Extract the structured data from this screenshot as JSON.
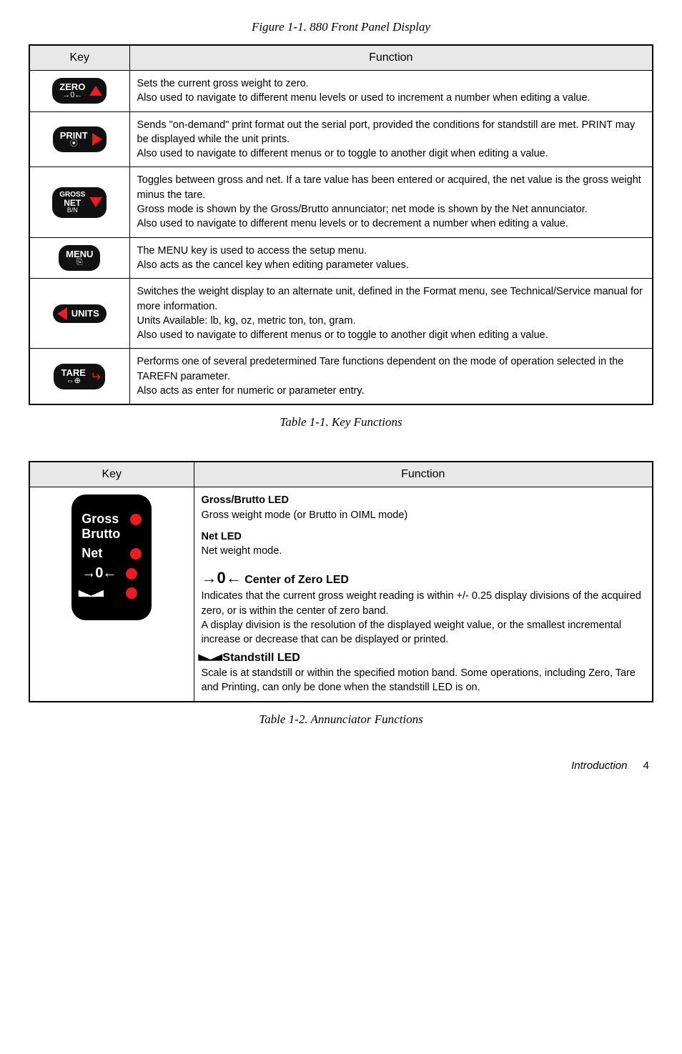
{
  "figure_caption": "Figure 1-1. 880 Front Panel Display",
  "table1_caption": "Table 1-1. Key Functions",
  "table2_caption": "Table 1-2. Annunciator Functions",
  "table1": {
    "header_key": "Key",
    "header_func": "Function",
    "rows": [
      {
        "key_label": "ZERO",
        "key_sub": "→0←",
        "arrow": "up",
        "func": "Sets the current gross weight to zero.\nAlso used to navigate to different menu levels or used to increment a number when editing a value."
      },
      {
        "key_label": "PRINT",
        "key_sub": "⦿",
        "arrow": "right",
        "func": "Sends \"on-demand\" print format out the serial port, provided the conditions for standstill are met. PRINT may be displayed while the unit prints.\nAlso used to navigate to different menus or to toggle to another digit when editing a value."
      },
      {
        "key_label": "GROSS",
        "key_sub2": "NET",
        "key_sub3": "B/N",
        "arrow": "down",
        "func": "Toggles between gross and net. If a tare value has been entered or acquired, the net value is the gross weight minus the tare.\nGross mode is shown by the Gross/Brutto annunciator; net mode is shown by the Net annunciator.\nAlso used to navigate to different menu levels or to decrement a number when editing a value."
      },
      {
        "key_label": "MENU",
        "key_sub": "⎘",
        "arrow": "none",
        "func": "The MENU key is used to access the setup menu.\nAlso acts as the cancel key when editing parameter values."
      },
      {
        "key_label": "UNITS",
        "arrow": "left",
        "func": "Switches the weight display to an alternate unit, defined in the Format menu, see Technical/Service manual for more information.\nUnits Available: lb, kg, oz, metric ton, ton, gram.\nAlso used to navigate to different menus or to toggle to another digit when editing a value."
      },
      {
        "key_label": "TARE",
        "key_sub": "⇔⊕",
        "arrow": "enter",
        "func": "Performs one of several predetermined Tare functions dependent on the mode of operation selected in the TAREFN parameter.\nAlso acts as enter for numeric or parameter entry."
      }
    ]
  },
  "table2": {
    "header_key": "Key",
    "header_func": "Function",
    "annun": {
      "gross_label": "Gross",
      "brutto_label": "Brutto",
      "net_label": "Net",
      "zero_icon": "→0←",
      "standstill_icon_left": "◣",
      "standstill_icon_right": "◢"
    },
    "sections": {
      "gross_heading": "Gross/Brutto LED",
      "gross_text": "Gross weight mode (or Brutto in OIML mode)",
      "net_heading": "Net LED",
      "net_text": "Net weight mode.",
      "center_heading": " Center of Zero LED",
      "center_pre_arrow": "→",
      "center_zero": "0",
      "center_post_arrow": "←",
      "center_text": "Indicates that the current gross weight reading is within +/- 0.25 display divisions of the acquired zero, or is within the center of zero band.\nA display division is the resolution of the displayed weight value, or the smallest incremental increase or decrease that can be displayed or printed.",
      "stand_heading": " Standstill LED",
      "stand_text": "Scale is at standstill or within the specified motion band. Some operations, including Zero, Tare and Printing, can only be done when the standstill LED is on."
    }
  },
  "footer_label": "Introduction",
  "footer_page": "4"
}
